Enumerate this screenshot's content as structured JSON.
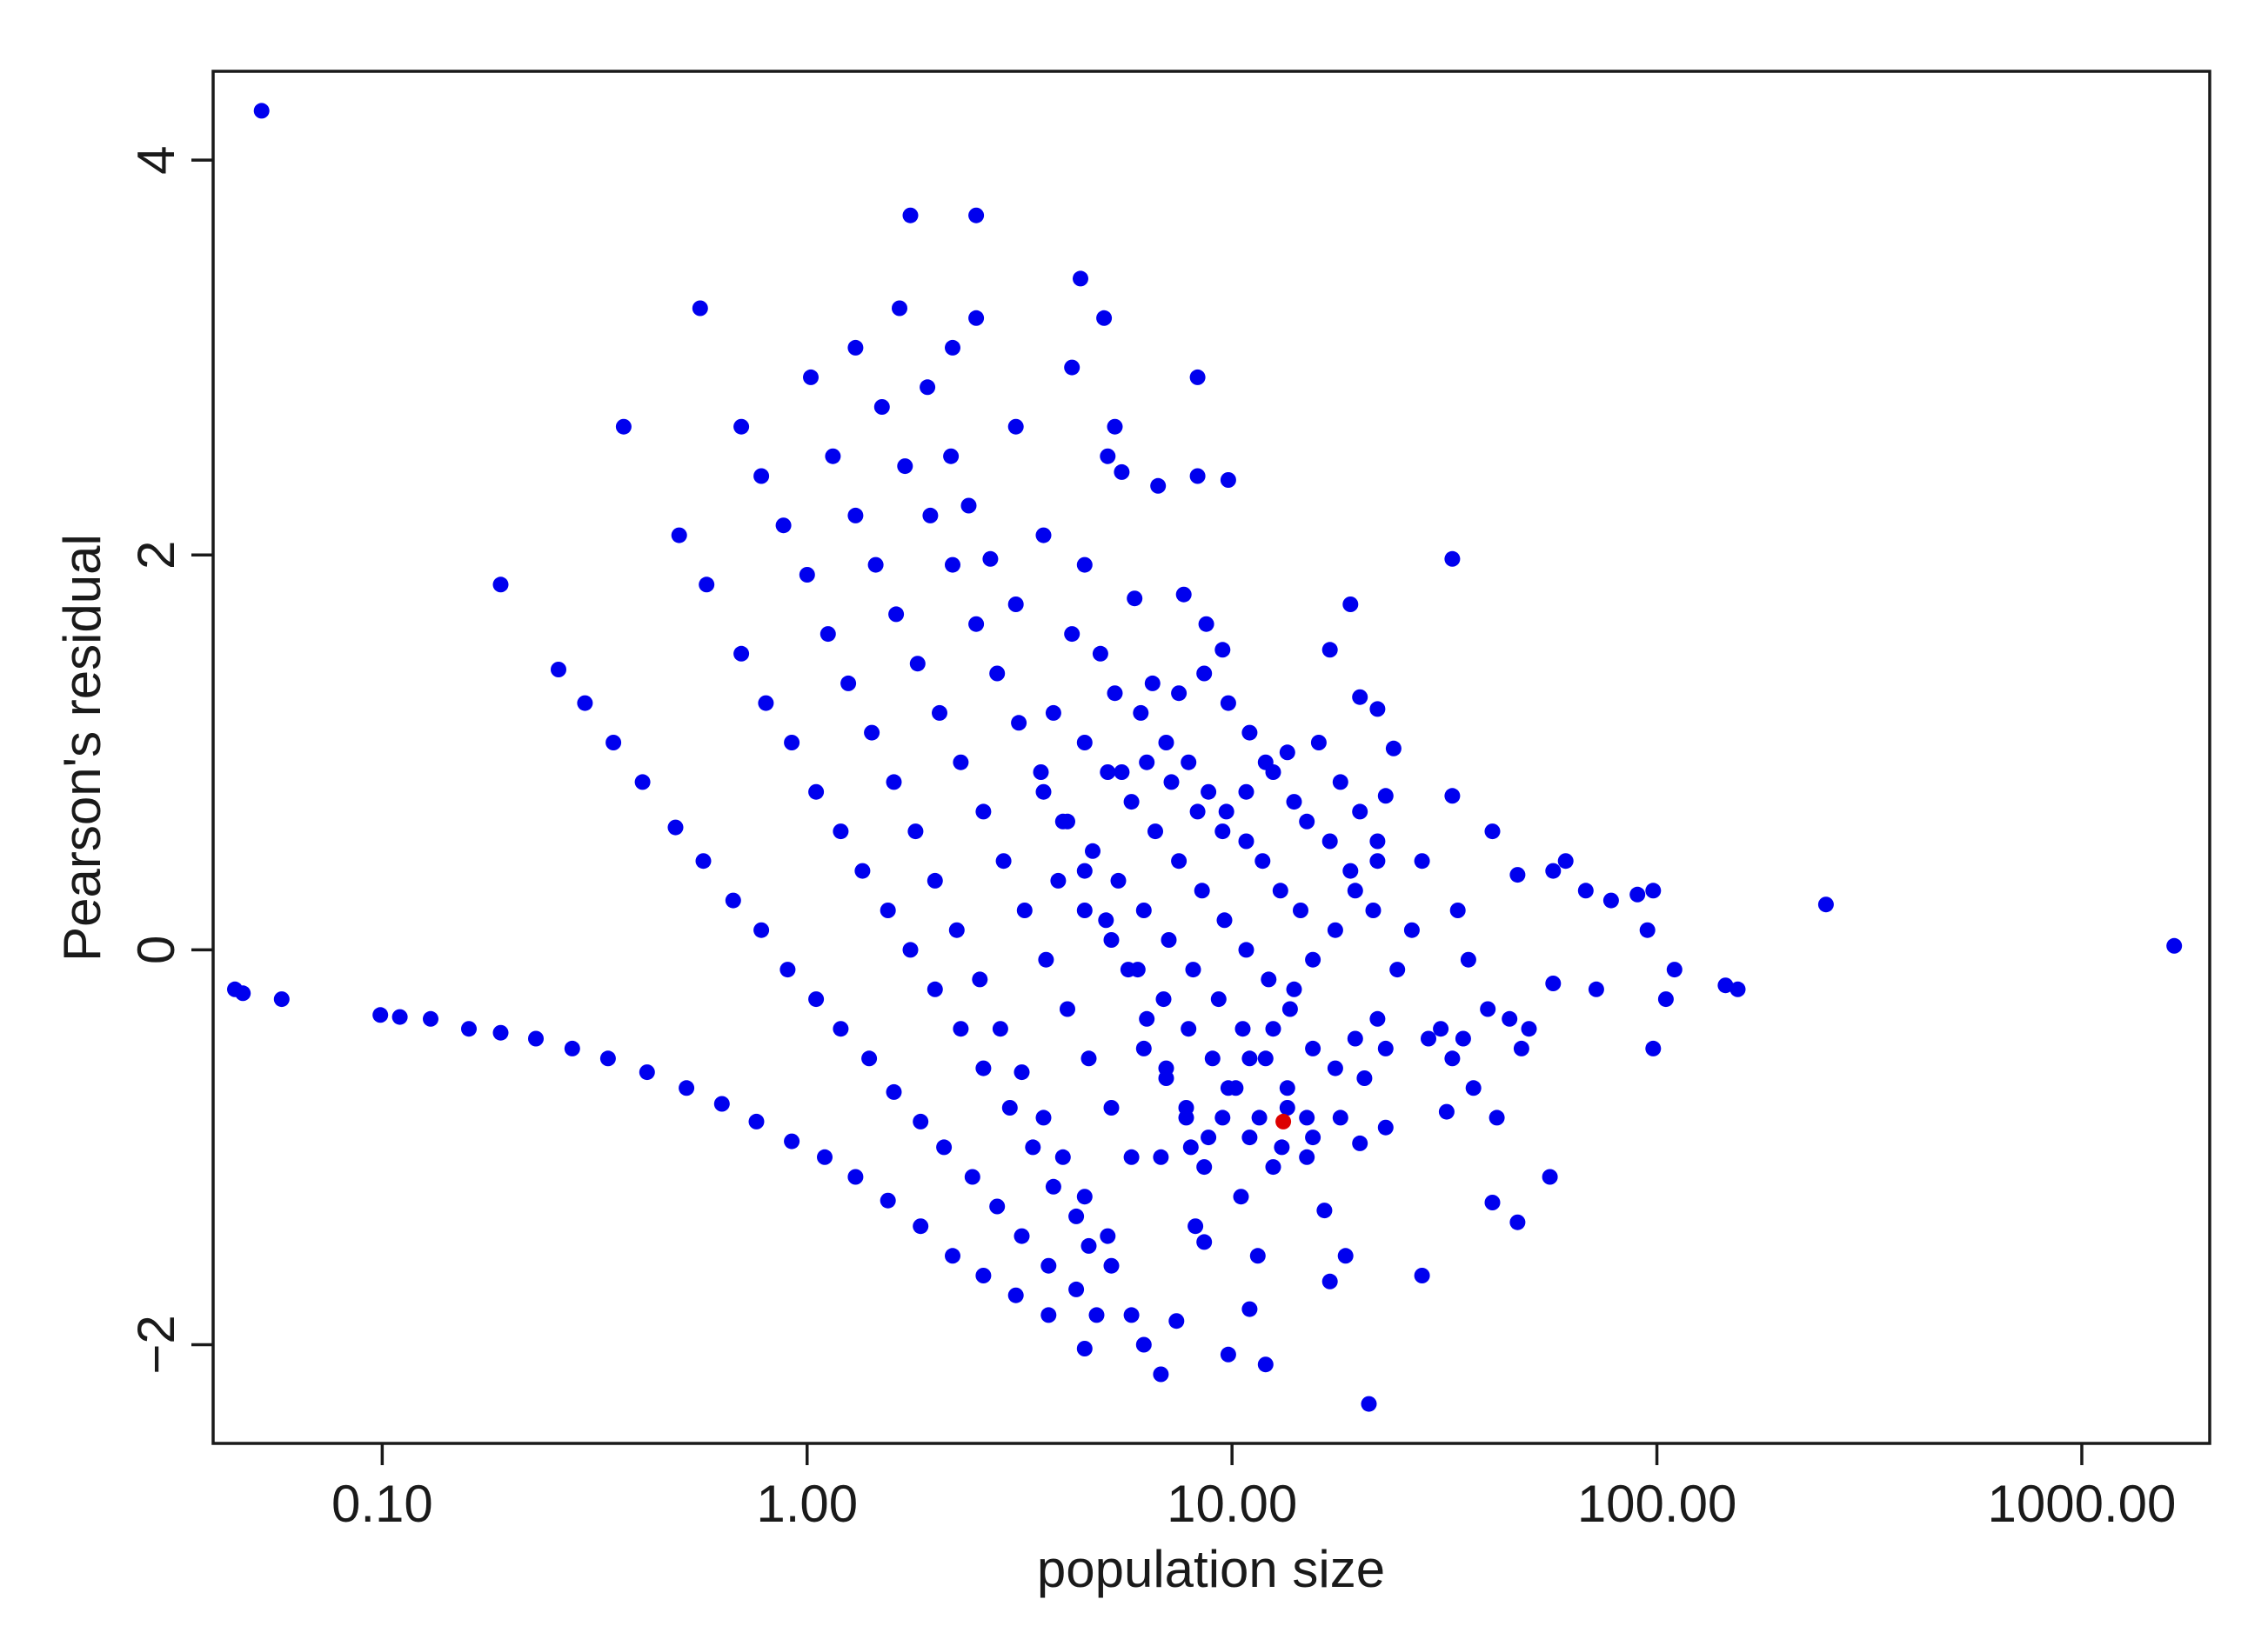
{
  "chart_data": {
    "type": "scatter",
    "title": "",
    "xlabel": "population size",
    "ylabel": "Pearson's residual",
    "x_scale": "log10",
    "xlim": [
      0.04,
      2000
    ],
    "ylim": [
      -2.5,
      4.45
    ],
    "x_ticks": [
      0.1,
      1,
      10,
      100,
      1000
    ],
    "x_tick_labels": [
      "0.10",
      "1.00",
      "10.00",
      "100.00",
      "1000.00"
    ],
    "y_ticks": [
      -2,
      0,
      2,
      4
    ],
    "y_tick_labels": [
      "−2",
      "0",
      "2",
      "4"
    ],
    "grid": false,
    "legend": "none",
    "colors": {
      "main": "#0000ee",
      "highlight": "#dd0000",
      "axis": "#1a1a1a"
    },
    "series": [
      {
        "color": "#0000ee",
        "points": [
          [
            0.052,
            4.25
          ],
          [
            0.045,
            -0.2
          ],
          [
            0.047,
            -0.22
          ],
          [
            0.058,
            -0.25
          ],
          [
            0.56,
            3.25
          ],
          [
            0.37,
            2.65
          ],
          [
            0.19,
            1.85
          ],
          [
            0.099,
            -0.33
          ],
          [
            0.11,
            -0.34
          ],
          [
            0.13,
            -0.35
          ],
          [
            0.16,
            -0.4
          ],
          [
            0.19,
            -0.42
          ],
          [
            0.23,
            -0.45
          ],
          [
            0.28,
            -0.5
          ],
          [
            0.34,
            -0.55
          ],
          [
            0.42,
            -0.62
          ],
          [
            0.52,
            -0.7
          ],
          [
            0.63,
            -0.78
          ],
          [
            0.76,
            -0.87
          ],
          [
            0.92,
            -0.97
          ],
          [
            1.1,
            -1.05
          ],
          [
            1.3,
            -1.15
          ],
          [
            1.55,
            -1.27
          ],
          [
            1.85,
            -1.4
          ],
          [
            2.2,
            -1.55
          ],
          [
            2.6,
            -1.65
          ],
          [
            3.1,
            -1.75
          ],
          [
            3.7,
            -1.85
          ],
          [
            0.26,
            1.42
          ],
          [
            0.3,
            1.25
          ],
          [
            0.35,
            1.05
          ],
          [
            0.41,
            0.85
          ],
          [
            0.49,
            0.62
          ],
          [
            0.57,
            0.45
          ],
          [
            0.67,
            0.25
          ],
          [
            0.78,
            0.1
          ],
          [
            0.9,
            -0.1
          ],
          [
            1.05,
            -0.25
          ],
          [
            1.2,
            -0.4
          ],
          [
            1.4,
            -0.55
          ],
          [
            1.6,
            -0.72
          ],
          [
            1.85,
            -0.87
          ],
          [
            2.1,
            -1.0
          ],
          [
            2.45,
            -1.15
          ],
          [
            2.8,
            -1.3
          ],
          [
            3.2,
            -1.45
          ],
          [
            3.7,
            -1.6
          ],
          [
            4.3,
            -1.72
          ],
          [
            4.8,
            -1.85
          ],
          [
            0.5,
            2.1
          ],
          [
            0.58,
            1.85
          ],
          [
            0.7,
            1.5
          ],
          [
            0.8,
            1.25
          ],
          [
            0.92,
            1.05
          ],
          [
            1.05,
            0.8
          ],
          [
            1.2,
            0.6
          ],
          [
            1.35,
            0.4
          ],
          [
            1.55,
            0.2
          ],
          [
            1.75,
            0.0
          ],
          [
            2.0,
            -0.2
          ],
          [
            2.3,
            -0.4
          ],
          [
            2.6,
            -0.6
          ],
          [
            3.0,
            -0.8
          ],
          [
            3.4,
            -1.0
          ],
          [
            3.8,
            -1.2
          ],
          [
            4.3,
            -1.35
          ],
          [
            4.6,
            -1.5
          ],
          [
            5.2,
            -1.6
          ],
          [
            0.7,
            2.65
          ],
          [
            0.78,
            2.4
          ],
          [
            0.88,
            2.15
          ],
          [
            1.0,
            1.9
          ],
          [
            1.12,
            1.6
          ],
          [
            1.25,
            1.35
          ],
          [
            1.42,
            1.1
          ],
          [
            1.6,
            0.85
          ],
          [
            1.8,
            0.6
          ],
          [
            2.0,
            0.35
          ],
          [
            2.25,
            0.1
          ],
          [
            2.55,
            -0.15
          ],
          [
            2.85,
            -0.4
          ],
          [
            3.2,
            -0.62
          ],
          [
            3.6,
            -0.85
          ],
          [
            4.0,
            -1.05
          ],
          [
            4.5,
            -1.25
          ],
          [
            5.1,
            -1.45
          ],
          [
            1.02,
            2.9
          ],
          [
            1.15,
            2.5
          ],
          [
            1.3,
            2.2
          ],
          [
            1.45,
            1.95
          ],
          [
            1.62,
            1.7
          ],
          [
            1.82,
            1.45
          ],
          [
            2.05,
            1.2
          ],
          [
            2.3,
            0.95
          ],
          [
            2.6,
            0.7
          ],
          [
            2.9,
            0.45
          ],
          [
            3.25,
            0.2
          ],
          [
            3.65,
            -0.05
          ],
          [
            4.1,
            -0.3
          ],
          [
            4.6,
            -0.55
          ],
          [
            5.2,
            -0.8
          ],
          [
            5.8,
            -1.05
          ],
          [
            1.3,
            3.05
          ],
          [
            1.5,
            2.75
          ],
          [
            1.7,
            2.45
          ],
          [
            1.95,
            2.2
          ],
          [
            2.2,
            1.95
          ],
          [
            2.5,
            1.65
          ],
          [
            2.8,
            1.4
          ],
          [
            3.15,
            1.15
          ],
          [
            3.55,
            0.9
          ],
          [
            4.0,
            0.65
          ],
          [
            4.5,
            0.4
          ],
          [
            5.05,
            0.15
          ],
          [
            5.7,
            -0.1
          ],
          [
            6.3,
            -0.35
          ],
          [
            7.0,
            -0.6
          ],
          [
            7.8,
            -0.85
          ],
          [
            8.6,
            -1.1
          ],
          [
            1.75,
            3.72
          ],
          [
            2.5,
            3.72
          ],
          [
            1.65,
            3.25
          ],
          [
            2.5,
            3.2
          ],
          [
            2.2,
            3.05
          ],
          [
            1.92,
            2.85
          ],
          [
            3.1,
            2.65
          ],
          [
            2.18,
            2.5
          ],
          [
            2.4,
            2.25
          ],
          [
            2.7,
            1.98
          ],
          [
            3.6,
            2.1
          ],
          [
            3.1,
            1.75
          ],
          [
            4.4,
            3.4
          ],
          [
            5.0,
            3.2
          ],
          [
            4.2,
            2.95
          ],
          [
            5.3,
            2.65
          ],
          [
            5.1,
            2.5
          ],
          [
            5.5,
            2.42
          ],
          [
            6.7,
            2.35
          ],
          [
            8.3,
            2.9
          ],
          [
            8.3,
            2.4
          ],
          [
            9.8,
            2.38
          ],
          [
            4.5,
            1.95
          ],
          [
            5.9,
            1.78
          ],
          [
            7.7,
            1.8
          ],
          [
            9.5,
            1.52
          ],
          [
            8.7,
            1.65
          ],
          [
            4.2,
            1.6
          ],
          [
            4.9,
            1.5
          ],
          [
            5.3,
            1.3
          ],
          [
            6.1,
            1.2
          ],
          [
            7.0,
            1.05
          ],
          [
            7.9,
            0.95
          ],
          [
            8.8,
            0.8
          ],
          [
            9.7,
            0.7
          ],
          [
            10.8,
            0.55
          ],
          [
            11.8,
            0.45
          ],
          [
            13.0,
            0.3
          ],
          [
            14.5,
            0.2
          ],
          [
            3.8,
            1.2
          ],
          [
            4.5,
            1.05
          ],
          [
            5.1,
            0.9
          ],
          [
            5.8,
            0.75
          ],
          [
            6.6,
            0.6
          ],
          [
            7.5,
            0.45
          ],
          [
            8.5,
            0.3
          ],
          [
            9.6,
            0.15
          ],
          [
            10.8,
            0.0
          ],
          [
            12.2,
            -0.15
          ],
          [
            13.7,
            -0.3
          ],
          [
            3.6,
            0.8
          ],
          [
            4.1,
            0.65
          ],
          [
            4.7,
            0.5
          ],
          [
            5.4,
            0.35
          ],
          [
            6.2,
            0.2
          ],
          [
            7.1,
            0.05
          ],
          [
            8.1,
            -0.1
          ],
          [
            9.3,
            -0.25
          ],
          [
            10.6,
            -0.4
          ],
          [
            12.0,
            -0.55
          ],
          [
            13.5,
            -0.7
          ],
          [
            15.0,
            -0.85
          ],
          [
            3.9,
            0.35
          ],
          [
            4.5,
            0.2
          ],
          [
            5.2,
            0.05
          ],
          [
            6.0,
            -0.1
          ],
          [
            6.9,
            -0.25
          ],
          [
            7.9,
            -0.4
          ],
          [
            9.0,
            -0.55
          ],
          [
            10.2,
            -0.7
          ],
          [
            11.6,
            -0.85
          ],
          [
            13.1,
            -1.0
          ],
          [
            5.5,
            0.9
          ],
          [
            6.3,
            0.95
          ],
          [
            7.2,
            0.85
          ],
          [
            8.3,
            0.7
          ],
          [
            9.5,
            0.6
          ],
          [
            10.8,
            0.8
          ],
          [
            12.0,
            0.95
          ],
          [
            13.5,
            1.0
          ],
          [
            15.0,
            0.65
          ],
          [
            17.0,
            0.55
          ],
          [
            19.0,
            0.4
          ],
          [
            21.5,
            0.2
          ],
          [
            6.5,
            1.35
          ],
          [
            7.5,
            1.3
          ],
          [
            8.6,
            1.4
          ],
          [
            9.8,
            1.25
          ],
          [
            11.0,
            1.1
          ],
          [
            12.5,
            0.9
          ],
          [
            14.0,
            0.75
          ],
          [
            16.0,
            1.05
          ],
          [
            18.0,
            0.85
          ],
          [
            20.0,
            0.7
          ],
          [
            22.0,
            0.55
          ],
          [
            17.0,
            1.52
          ],
          [
            19.0,
            1.75
          ],
          [
            20.0,
            1.28
          ],
          [
            22.0,
            1.22
          ],
          [
            24.0,
            1.02
          ],
          [
            23.0,
            0.78
          ],
          [
            6.2,
            -0.5
          ],
          [
            7.0,
            -0.65
          ],
          [
            7.8,
            -0.8
          ],
          [
            8.8,
            -0.95
          ],
          [
            9.8,
            -0.7
          ],
          [
            11.0,
            -0.55
          ],
          [
            12.5,
            -0.4
          ],
          [
            14.0,
            -0.2
          ],
          [
            15.5,
            -0.05
          ],
          [
            17.5,
            0.1
          ],
          [
            19.5,
            0.3
          ],
          [
            22.0,
            0.45
          ],
          [
            6.8,
            -1.05
          ],
          [
            8.0,
            -1.0
          ],
          [
            9.5,
            -0.85
          ],
          [
            11.0,
            -0.95
          ],
          [
            13.5,
            -0.8
          ],
          [
            15.5,
            -0.95
          ],
          [
            18.0,
            -0.85
          ],
          [
            20.5,
            -0.65
          ],
          [
            23.0,
            -0.5
          ],
          [
            15.5,
            -0.5
          ],
          [
            17.5,
            -0.6
          ],
          [
            19.5,
            -0.45
          ],
          [
            22.0,
            -0.35
          ],
          [
            24.5,
            -0.1
          ],
          [
            26.5,
            0.1
          ],
          [
            28.0,
            0.45
          ],
          [
            29.0,
            -0.45
          ],
          [
            31.0,
            -0.4
          ],
          [
            33.0,
            -0.55
          ],
          [
            35.0,
            -0.45
          ],
          [
            37.0,
            -0.7
          ],
          [
            32.0,
            -0.82
          ],
          [
            40.0,
            -0.3
          ],
          [
            45.0,
            -0.35
          ],
          [
            48.0,
            -0.5
          ],
          [
            50.0,
            -0.4
          ],
          [
            42.0,
            -0.85
          ],
          [
            33.0,
            0.78
          ],
          [
            34.0,
            0.2
          ],
          [
            36.0,
            -0.05
          ],
          [
            41.0,
            0.6
          ],
          [
            47.0,
            0.38
          ],
          [
            57.0,
            0.4
          ],
          [
            61.0,
            0.45
          ],
          [
            68.0,
            0.3
          ],
          [
            78.0,
            0.25
          ],
          [
            90.0,
            0.28
          ],
          [
            95.0,
            0.1
          ],
          [
            98.0,
            0.3
          ],
          [
            33.0,
            1.98
          ],
          [
            57.0,
            -0.17
          ],
          [
            72.0,
            -0.2
          ],
          [
            98.0,
            -0.5
          ],
          [
            105.0,
            -0.25
          ],
          [
            110.0,
            -0.1
          ],
          [
            145.0,
            -0.18
          ],
          [
            155.0,
            -0.2
          ],
          [
            41.0,
            -1.28
          ],
          [
            47.0,
            -1.38
          ],
          [
            56.0,
            -1.15
          ],
          [
            28.0,
            -1.65
          ],
          [
            21.0,
            -2.3
          ],
          [
            18.5,
            -1.55
          ],
          [
            17.0,
            -1.68
          ],
          [
            20.0,
            -0.98
          ],
          [
            23.0,
            -0.9
          ],
          [
            15.0,
            -1.05
          ],
          [
            4.5,
            -2.02
          ],
          [
            5.8,
            -1.85
          ],
          [
            6.2,
            -2.0
          ],
          [
            6.8,
            -2.15
          ],
          [
            7.4,
            -1.88
          ],
          [
            9.8,
            -2.05
          ],
          [
            12.0,
            -2.1
          ],
          [
            11.0,
            -1.82
          ],
          [
            11.5,
            -1.55
          ],
          [
            16.5,
            -1.32
          ],
          [
            8.6,
            -1.48
          ],
          [
            8.2,
            -1.4
          ],
          [
            10.5,
            -1.25
          ],
          [
            12.5,
            -1.1
          ],
          [
            250.0,
            0.23
          ],
          [
            1650.0,
            0.02
          ]
        ]
      },
      {
        "color": "#dd0000",
        "points": [
          [
            13.2,
            -0.87
          ]
        ]
      }
    ]
  }
}
